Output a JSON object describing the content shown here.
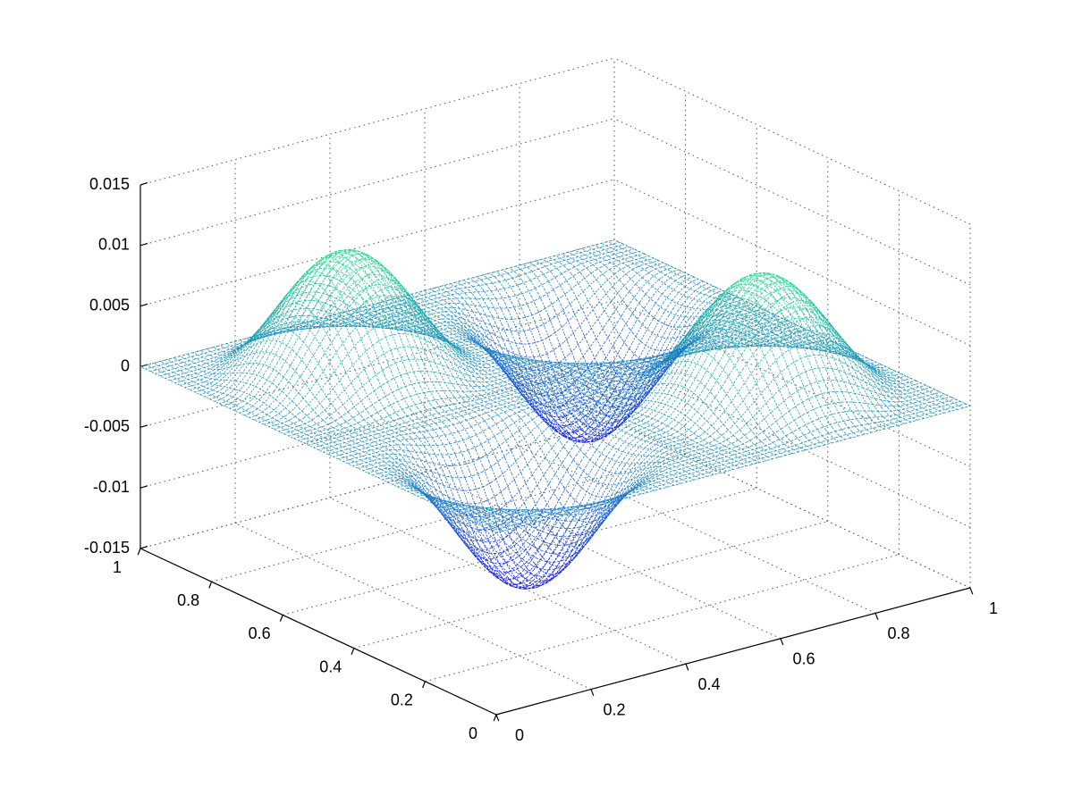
{
  "chart_data": {
    "type": "surface",
    "title": "",
    "xlabel": "",
    "ylabel": "",
    "zlabel": "",
    "xlim": [
      0,
      1
    ],
    "ylim": [
      0,
      1
    ],
    "zlim": [
      -0.015,
      0.015
    ],
    "x_ticks": [
      "0",
      "0.2",
      "0.4",
      "0.6",
      "0.8",
      "1"
    ],
    "y_ticks": [
      "0",
      "0.2",
      "0.4",
      "0.6",
      "0.8",
      "1"
    ],
    "z_ticks": [
      "-0.015",
      "-0.01",
      "-0.005",
      "0",
      "0.005",
      "0.01",
      "0.015"
    ],
    "grid": true,
    "grid_style": "dotted",
    "colormap": [
      "#1010e8",
      "#1e8cc0",
      "#22e088"
    ],
    "surface": {
      "description": "two positive and two negative bumps over the unit square, zero along the boundary",
      "peaks": [
        {
          "x": 0.25,
          "y": 0.75,
          "z": 0.0103
        },
        {
          "x": 0.75,
          "y": 0.25,
          "z": 0.01
        },
        {
          "x": 0.25,
          "y": 0.25,
          "z": -0.0105
        },
        {
          "x": 0.75,
          "y": 0.75,
          "z": -0.0105
        }
      ]
    }
  }
}
